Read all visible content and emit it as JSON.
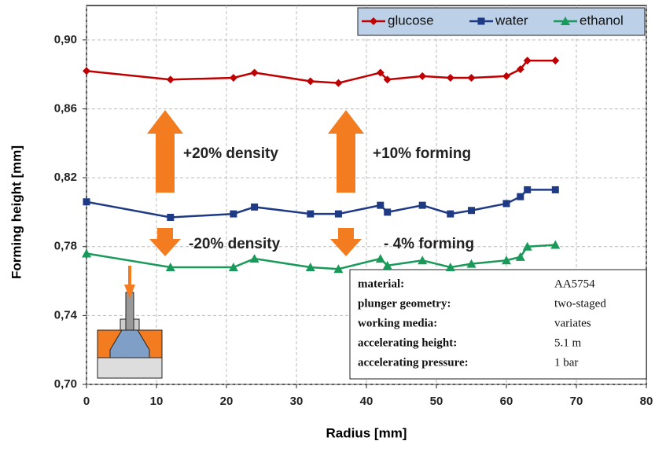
{
  "chart_data": {
    "type": "line",
    "y_label": "Forming height [mm]",
    "x_label": "Radius [mm]",
    "x": [
      0,
      12,
      21,
      24,
      32,
      36,
      42,
      43,
      48,
      52,
      55,
      60,
      62,
      63,
      67
    ],
    "series": [
      {
        "name": "glucose",
        "color": "#c00000",
        "marker": "diamond",
        "values": [
          0.882,
          0.877,
          0.878,
          0.881,
          0.876,
          0.875,
          0.881,
          0.877,
          0.879,
          0.878,
          0.878,
          0.879,
          0.883,
          0.888,
          0.888
        ]
      },
      {
        "name": "water",
        "color": "#1f3a85",
        "marker": "square",
        "values": [
          0.806,
          0.797,
          0.799,
          0.803,
          0.799,
          0.799,
          0.804,
          0.8,
          0.804,
          0.799,
          0.801,
          0.805,
          0.809,
          0.813,
          0.813
        ]
      },
      {
        "name": "ethanol",
        "color": "#1a9a5a",
        "marker": "triangle",
        "values": [
          0.776,
          0.768,
          0.768,
          0.773,
          0.768,
          0.767,
          0.773,
          0.769,
          0.772,
          0.768,
          0.77,
          0.772,
          0.774,
          0.78,
          0.781
        ]
      }
    ],
    "xlim": [
      0,
      80
    ],
    "xticks": [
      0,
      10,
      20,
      30,
      40,
      50,
      60,
      70,
      80
    ],
    "ylim": [
      0.7,
      0.92
    ],
    "yticks": [
      {
        "value": 0.7,
        "label": "0,70"
      },
      {
        "value": 0.74,
        "label": "0,74"
      },
      {
        "value": 0.78,
        "label": "0,78"
      },
      {
        "value": 0.82,
        "label": "0,82"
      },
      {
        "value": 0.86,
        "label": "0,86"
      },
      {
        "value": 0.9,
        "label": "0,90"
      }
    ],
    "grid": true,
    "legend": "upper right",
    "annotations": [
      "+20% density",
      "+10% forming",
      "-20% density",
      "- 4% forming"
    ],
    "table": [
      [
        "material:",
        "AA5754"
      ],
      [
        "plunger geometry:",
        "two-staged"
      ],
      [
        "working media:",
        "variates"
      ],
      [
        "accelerating height:",
        "5.1 m"
      ],
      [
        "accelerating pressure:",
        "1 bar"
      ]
    ]
  }
}
